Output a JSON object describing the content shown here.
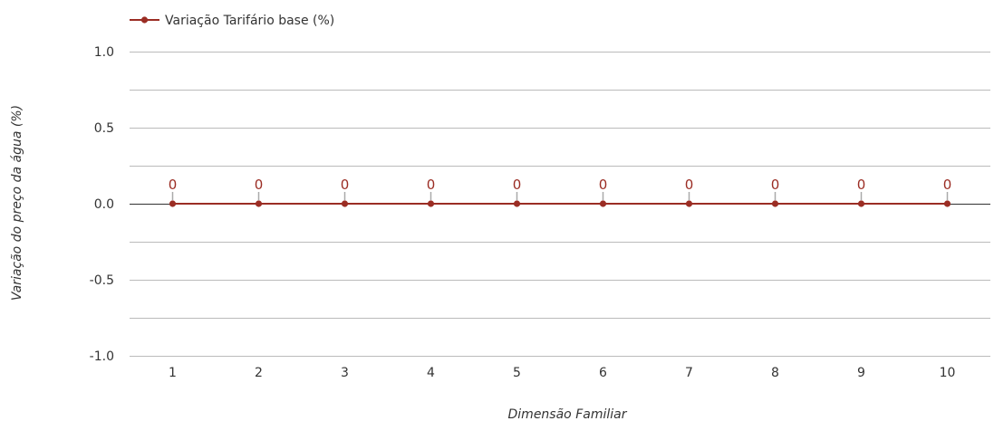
{
  "chart_data": {
    "type": "line",
    "xlabel": "Dimensão Familiar",
    "ylabel": "Variação do preço da água (%)",
    "x": [
      "1",
      "2",
      "3",
      "4",
      "5",
      "6",
      "7",
      "8",
      "9",
      "10"
    ],
    "series": [
      {
        "name": "Variação Tarifário base (%)",
        "values": [
          0,
          0,
          0,
          0,
          0,
          0,
          0,
          0,
          0,
          0
        ],
        "labels": [
          "0",
          "0",
          "0",
          "0",
          "0",
          "0",
          "0",
          "0",
          "0",
          "0"
        ],
        "color": "#9b2d24"
      }
    ],
    "ylim": [
      -1.0,
      1.0
    ],
    "yticks": [
      "1.0",
      "0.5",
      "0.0",
      "-0.5",
      "-1.0"
    ],
    "ytick_values": [
      1.0,
      0.5,
      0.0,
      -0.5,
      -1.0
    ],
    "minor_gridlines": [
      0.75,
      0.25,
      -0.25,
      -0.75
    ],
    "grid": true,
    "legend": "top-left",
    "colors": {
      "series": "#9b2d24",
      "grid": "#bbbbbb",
      "zero_line": "#333333",
      "label_connector": "#aaaaaa"
    }
  }
}
